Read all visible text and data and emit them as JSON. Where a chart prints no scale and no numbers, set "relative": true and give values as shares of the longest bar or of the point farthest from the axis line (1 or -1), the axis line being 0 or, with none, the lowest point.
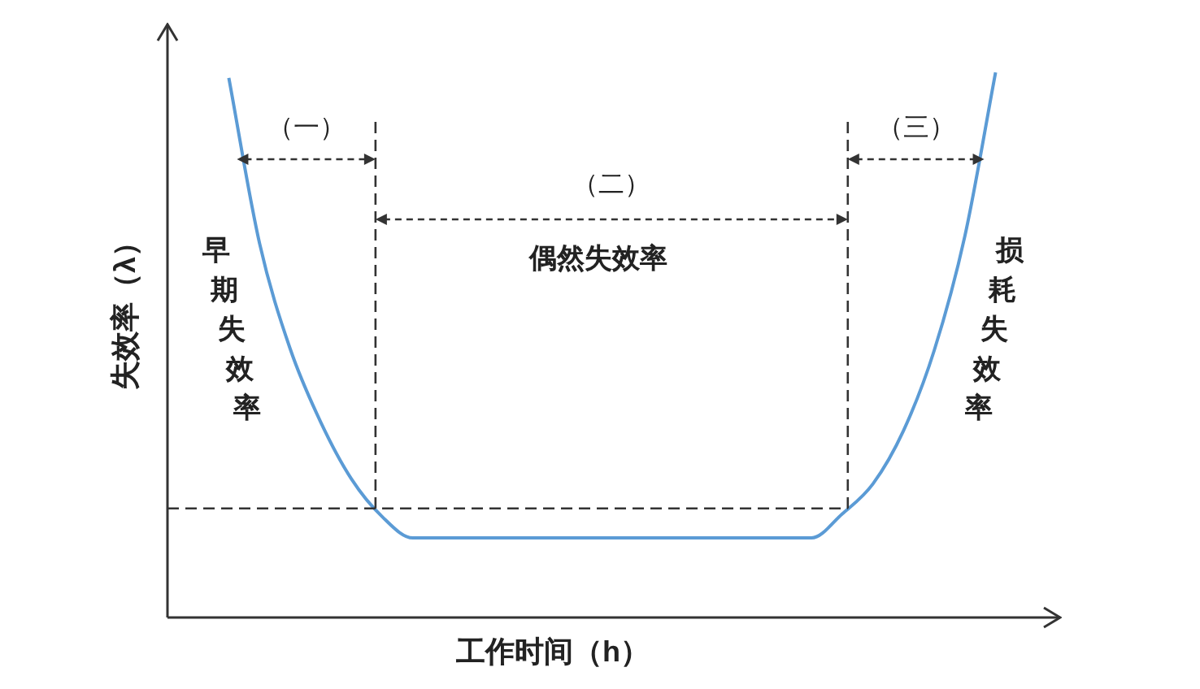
{
  "chart_data": {
    "type": "line",
    "relative": true,
    "xlabel": "工作时间（h）",
    "ylabel": "失效率（λ）",
    "marker": "none",
    "color": "#5b9bd5",
    "categories": [
      null,
      null,
      null,
      null,
      null,
      null,
      null,
      null,
      null,
      null,
      null,
      null,
      null,
      null,
      null,
      null,
      null,
      null,
      null,
      null,
      null,
      null,
      null,
      null,
      null,
      null,
      null,
      null,
      null,
      null
    ],
    "values": [
      null,
      null,
      0.99,
      0.687,
      0.493,
      0.358,
      0.254,
      0.185,
      0.146,
      0.146,
      0.146,
      0.146,
      0.146,
      0.146,
      0.146,
      0.146,
      0.146,
      0.146,
      0.146,
      0.146,
      0.146,
      0.146,
      0.19,
      0.245,
      0.343,
      0.49,
      0.7,
      1,
      null,
      null
    ],
    "ref_lines": [
      {
        "axis": "y",
        "value": 0.2,
        "line_style": "dashed",
        "color": "#333333"
      }
    ],
    "annotations": [
      "（一）",
      "（二）",
      "（三）",
      "偶然失效率",
      "早期失效率",
      "损耗失效率"
    ]
  }
}
